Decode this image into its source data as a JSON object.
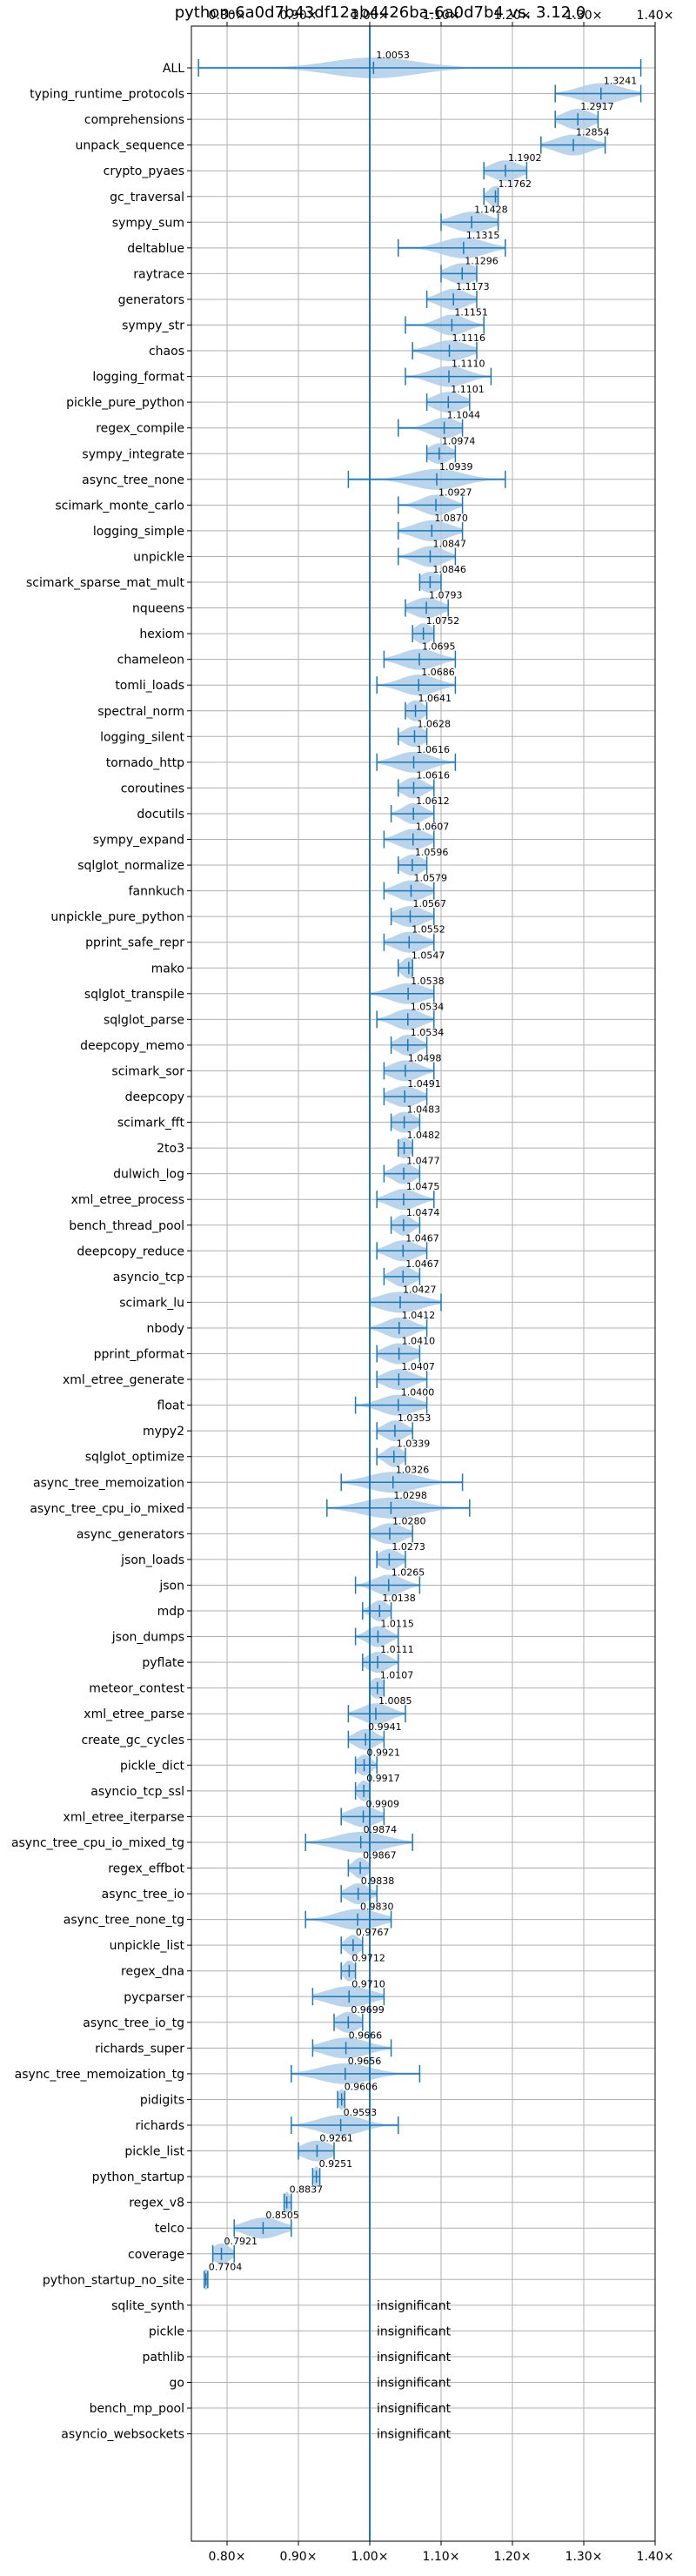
{
  "chart_data": {
    "type": "violin",
    "title": "python-6a0d7b43df12ab4426ba-6a0d7b4 vs. 3.12.0",
    "xlim": [
      0.75,
      1.4
    ],
    "x_ticks": [
      0.8,
      0.9,
      1.0,
      1.1,
      1.2,
      1.3,
      1.4
    ],
    "x_tick_labels": [
      "0.80×",
      "0.90×",
      "1.00×",
      "1.10×",
      "1.20×",
      "1.30×",
      "1.40×"
    ],
    "reference_line": 1.0,
    "grid": true,
    "colors": {
      "line": "#1f77b4",
      "violin": "#aecde8",
      "grid": "#b0b0b0",
      "frame": "#000000"
    },
    "insignificant_text": "insignificant",
    "benchmarks": [
      {
        "name": "ALL",
        "value": 1.0053,
        "label": "1.0053",
        "min": 0.76,
        "max": 1.38,
        "spread": 0.06
      },
      {
        "name": "typing_runtime_protocols",
        "value": 1.3241,
        "label": "1.3241",
        "min": 1.26,
        "max": 1.38,
        "spread": 0.03
      },
      {
        "name": "comprehensions",
        "value": 1.2917,
        "label": "1.2917",
        "min": 1.26,
        "max": 1.32,
        "spread": 0.02
      },
      {
        "name": "unpack_sequence",
        "value": 1.2854,
        "label": "1.2854",
        "min": 1.24,
        "max": 1.33,
        "spread": 0.025
      },
      {
        "name": "crypto_pyaes",
        "value": 1.1902,
        "label": "1.1902",
        "min": 1.16,
        "max": 1.22,
        "spread": 0.02
      },
      {
        "name": "gc_traversal",
        "value": 1.1762,
        "label": "1.1762",
        "min": 1.16,
        "max": 1.18,
        "spread": 0.01
      },
      {
        "name": "sympy_sum",
        "value": 1.1428,
        "label": "1.1428",
        "min": 1.1,
        "max": 1.18,
        "spread": 0.025
      },
      {
        "name": "deltablue",
        "value": 1.1315,
        "label": "1.1315",
        "min": 1.04,
        "max": 1.19,
        "spread": 0.03
      },
      {
        "name": "raytrace",
        "value": 1.1296,
        "label": "1.1296",
        "min": 1.1,
        "max": 1.15,
        "spread": 0.02
      },
      {
        "name": "generators",
        "value": 1.1173,
        "label": "1.1173",
        "min": 1.08,
        "max": 1.15,
        "spread": 0.02
      },
      {
        "name": "sympy_str",
        "value": 1.1151,
        "label": "1.1151",
        "min": 1.05,
        "max": 1.16,
        "spread": 0.02
      },
      {
        "name": "chaos",
        "value": 1.1116,
        "label": "1.1116",
        "min": 1.06,
        "max": 1.15,
        "spread": 0.025
      },
      {
        "name": "logging_format",
        "value": 1.111,
        "label": "1.1110",
        "min": 1.05,
        "max": 1.17,
        "spread": 0.025
      },
      {
        "name": "pickle_pure_python",
        "value": 1.1101,
        "label": "1.1101",
        "min": 1.08,
        "max": 1.14,
        "spread": 0.02
      },
      {
        "name": "regex_compile",
        "value": 1.1044,
        "label": "1.1044",
        "min": 1.04,
        "max": 1.13,
        "spread": 0.02
      },
      {
        "name": "sympy_integrate",
        "value": 1.0974,
        "label": "1.0974",
        "min": 1.08,
        "max": 1.12,
        "spread": 0.015
      },
      {
        "name": "async_tree_none",
        "value": 1.0939,
        "label": "1.0939",
        "min": 0.97,
        "max": 1.19,
        "spread": 0.035
      },
      {
        "name": "scimark_monte_carlo",
        "value": 1.0927,
        "label": "1.0927",
        "min": 1.04,
        "max": 1.13,
        "spread": 0.02
      },
      {
        "name": "logging_simple",
        "value": 1.087,
        "label": "1.0870",
        "min": 1.04,
        "max": 1.13,
        "spread": 0.025
      },
      {
        "name": "unpickle",
        "value": 1.0847,
        "label": "1.0847",
        "min": 1.04,
        "max": 1.12,
        "spread": 0.02
      },
      {
        "name": "scimark_sparse_mat_mult",
        "value": 1.0846,
        "label": "1.0846",
        "min": 1.07,
        "max": 1.1,
        "spread": 0.015
      },
      {
        "name": "nqueens",
        "value": 1.0793,
        "label": "1.0793",
        "min": 1.05,
        "max": 1.11,
        "spread": 0.02
      },
      {
        "name": "hexiom",
        "value": 1.0752,
        "label": "1.0752",
        "min": 1.06,
        "max": 1.09,
        "spread": 0.012
      },
      {
        "name": "chameleon",
        "value": 1.0695,
        "label": "1.0695",
        "min": 1.02,
        "max": 1.12,
        "spread": 0.025
      },
      {
        "name": "tomli_loads",
        "value": 1.0686,
        "label": "1.0686",
        "min": 1.01,
        "max": 1.12,
        "spread": 0.025
      },
      {
        "name": "spectral_norm",
        "value": 1.0641,
        "label": "1.0641",
        "min": 1.05,
        "max": 1.08,
        "spread": 0.012
      },
      {
        "name": "logging_silent",
        "value": 1.0628,
        "label": "1.0628",
        "min": 1.04,
        "max": 1.08,
        "spread": 0.015
      },
      {
        "name": "tornado_http",
        "value": 1.0616,
        "label": "1.0616",
        "min": 1.01,
        "max": 1.12,
        "spread": 0.025
      },
      {
        "name": "coroutines",
        "value": 1.0616,
        "label": "1.0616",
        "min": 1.04,
        "max": 1.09,
        "spread": 0.015
      },
      {
        "name": "docutils",
        "value": 1.0612,
        "label": "1.0612",
        "min": 1.03,
        "max": 1.09,
        "spread": 0.015
      },
      {
        "name": "sympy_expand",
        "value": 1.0607,
        "label": "1.0607",
        "min": 1.02,
        "max": 1.09,
        "spread": 0.02
      },
      {
        "name": "sqlglot_normalize",
        "value": 1.0596,
        "label": "1.0596",
        "min": 1.04,
        "max": 1.08,
        "spread": 0.015
      },
      {
        "name": "fannkuch",
        "value": 1.0579,
        "label": "1.0579",
        "min": 1.02,
        "max": 1.09,
        "spread": 0.02
      },
      {
        "name": "unpickle_pure_python",
        "value": 1.0567,
        "label": "1.0567",
        "min": 1.03,
        "max": 1.09,
        "spread": 0.02
      },
      {
        "name": "pprint_safe_repr",
        "value": 1.0552,
        "label": "1.0552",
        "min": 1.02,
        "max": 1.09,
        "spread": 0.02
      },
      {
        "name": "mako",
        "value": 1.0547,
        "label": "1.0547",
        "min": 1.04,
        "max": 1.06,
        "spread": 0.01
      },
      {
        "name": "sqlglot_transpile",
        "value": 1.0538,
        "label": "1.0538",
        "min": 1.0,
        "max": 1.09,
        "spread": 0.025
      },
      {
        "name": "sqlglot_parse",
        "value": 1.0534,
        "label": "1.0534",
        "min": 1.01,
        "max": 1.09,
        "spread": 0.02
      },
      {
        "name": "deepcopy_memo",
        "value": 1.0534,
        "label": "1.0534",
        "min": 1.03,
        "max": 1.08,
        "spread": 0.015
      },
      {
        "name": "scimark_sor",
        "value": 1.0498,
        "label": "1.0498",
        "min": 1.02,
        "max": 1.09,
        "spread": 0.02
      },
      {
        "name": "deepcopy",
        "value": 1.0491,
        "label": "1.0491",
        "min": 1.02,
        "max": 1.08,
        "spread": 0.02
      },
      {
        "name": "scimark_fft",
        "value": 1.0483,
        "label": "1.0483",
        "min": 1.03,
        "max": 1.07,
        "spread": 0.015
      },
      {
        "name": "2to3",
        "value": 1.0482,
        "label": "1.0482",
        "min": 1.04,
        "max": 1.06,
        "spread": 0.01
      },
      {
        "name": "dulwich_log",
        "value": 1.0477,
        "label": "1.0477",
        "min": 1.02,
        "max": 1.07,
        "spread": 0.015
      },
      {
        "name": "xml_etree_process",
        "value": 1.0475,
        "label": "1.0475",
        "min": 1.01,
        "max": 1.09,
        "spread": 0.02
      },
      {
        "name": "bench_thread_pool",
        "value": 1.0474,
        "label": "1.0474",
        "min": 1.03,
        "max": 1.07,
        "spread": 0.012
      },
      {
        "name": "deepcopy_reduce",
        "value": 1.0467,
        "label": "1.0467",
        "min": 1.01,
        "max": 1.08,
        "spread": 0.02
      },
      {
        "name": "asyncio_tcp",
        "value": 1.0467,
        "label": "1.0467",
        "min": 1.02,
        "max": 1.07,
        "spread": 0.015
      },
      {
        "name": "scimark_lu",
        "value": 1.0427,
        "label": "1.0427",
        "min": 1.0,
        "max": 1.1,
        "spread": 0.03
      },
      {
        "name": "nbody",
        "value": 1.0412,
        "label": "1.0412",
        "min": 1.0,
        "max": 1.08,
        "spread": 0.02
      },
      {
        "name": "pprint_pformat",
        "value": 1.041,
        "label": "1.0410",
        "min": 1.01,
        "max": 1.07,
        "spread": 0.02
      },
      {
        "name": "xml_etree_generate",
        "value": 1.0407,
        "label": "1.0407",
        "min": 1.01,
        "max": 1.08,
        "spread": 0.02
      },
      {
        "name": "float",
        "value": 1.04,
        "label": "1.0400",
        "min": 0.98,
        "max": 1.08,
        "spread": 0.025
      },
      {
        "name": "mypy2",
        "value": 1.0353,
        "label": "1.0353",
        "min": 1.01,
        "max": 1.06,
        "spread": 0.015
      },
      {
        "name": "sqlglot_optimize",
        "value": 1.0339,
        "label": "1.0339",
        "min": 1.01,
        "max": 1.05,
        "spread": 0.012
      },
      {
        "name": "async_tree_memoization",
        "value": 1.0326,
        "label": "1.0326",
        "min": 0.96,
        "max": 1.13,
        "spread": 0.035
      },
      {
        "name": "async_tree_cpu_io_mixed",
        "value": 1.0298,
        "label": "1.0298",
        "min": 0.94,
        "max": 1.14,
        "spread": 0.04
      },
      {
        "name": "async_generators",
        "value": 1.028,
        "label": "1.0280",
        "min": 1.0,
        "max": 1.06,
        "spread": 0.02
      },
      {
        "name": "json_loads",
        "value": 1.0273,
        "label": "1.0273",
        "min": 1.01,
        "max": 1.05,
        "spread": 0.015
      },
      {
        "name": "json",
        "value": 1.0265,
        "label": "1.0265",
        "min": 0.98,
        "max": 1.07,
        "spread": 0.02
      },
      {
        "name": "mdp",
        "value": 1.0138,
        "label": "1.0138",
        "min": 0.99,
        "max": 1.03,
        "spread": 0.012
      },
      {
        "name": "json_dumps",
        "value": 1.0115,
        "label": "1.0115",
        "min": 0.98,
        "max": 1.04,
        "spread": 0.015
      },
      {
        "name": "pyflate",
        "value": 1.0111,
        "label": "1.0111",
        "min": 0.99,
        "max": 1.04,
        "spread": 0.015
      },
      {
        "name": "meteor_contest",
        "value": 1.0107,
        "label": "1.0107",
        "min": 1.0,
        "max": 1.02,
        "spread": 0.01
      },
      {
        "name": "xml_etree_parse",
        "value": 1.0085,
        "label": "1.0085",
        "min": 0.97,
        "max": 1.05,
        "spread": 0.02
      },
      {
        "name": "create_gc_cycles",
        "value": 0.9941,
        "label": "0.9941",
        "min": 0.97,
        "max": 1.02,
        "spread": 0.015
      },
      {
        "name": "pickle_dict",
        "value": 0.9921,
        "label": "0.9921",
        "min": 0.98,
        "max": 1.01,
        "spread": 0.01
      },
      {
        "name": "asyncio_tcp_ssl",
        "value": 0.9917,
        "label": "0.9917",
        "min": 0.98,
        "max": 1.0,
        "spread": 0.008
      },
      {
        "name": "xml_etree_iterparse",
        "value": 0.9909,
        "label": "0.9909",
        "min": 0.96,
        "max": 1.02,
        "spread": 0.02
      },
      {
        "name": "async_tree_cpu_io_mixed_tg",
        "value": 0.9874,
        "label": "0.9874",
        "min": 0.91,
        "max": 1.06,
        "spread": 0.035
      },
      {
        "name": "regex_effbot",
        "value": 0.9867,
        "label": "0.9867",
        "min": 0.97,
        "max": 1.0,
        "spread": 0.01
      },
      {
        "name": "async_tree_io",
        "value": 0.9838,
        "label": "0.9838",
        "min": 0.96,
        "max": 1.01,
        "spread": 0.015
      },
      {
        "name": "async_tree_none_tg",
        "value": 0.983,
        "label": "0.9830",
        "min": 0.91,
        "max": 1.03,
        "spread": 0.03
      },
      {
        "name": "unpickle_list",
        "value": 0.9767,
        "label": "0.9767",
        "min": 0.96,
        "max": 0.99,
        "spread": 0.01
      },
      {
        "name": "regex_dna",
        "value": 0.9712,
        "label": "0.9712",
        "min": 0.96,
        "max": 0.98,
        "spread": 0.008
      },
      {
        "name": "pycparser",
        "value": 0.971,
        "label": "0.9710",
        "min": 0.92,
        "max": 1.02,
        "spread": 0.03
      },
      {
        "name": "async_tree_io_tg",
        "value": 0.9699,
        "label": "0.9699",
        "min": 0.95,
        "max": 0.99,
        "spread": 0.015
      },
      {
        "name": "richards_super",
        "value": 0.9666,
        "label": "0.9666",
        "min": 0.92,
        "max": 1.03,
        "spread": 0.03
      },
      {
        "name": "async_tree_memoization_tg",
        "value": 0.9656,
        "label": "0.9656",
        "min": 0.89,
        "max": 1.07,
        "spread": 0.035
      },
      {
        "name": "pidigits",
        "value": 0.9606,
        "label": "0.9606",
        "min": 0.955,
        "max": 0.965,
        "spread": 0.005
      },
      {
        "name": "richards",
        "value": 0.9593,
        "label": "0.9593",
        "min": 0.89,
        "max": 1.04,
        "spread": 0.03
      },
      {
        "name": "pickle_list",
        "value": 0.9261,
        "label": "0.9261",
        "min": 0.9,
        "max": 0.95,
        "spread": 0.02
      },
      {
        "name": "python_startup",
        "value": 0.9251,
        "label": "0.9251",
        "min": 0.92,
        "max": 0.93,
        "spread": 0.004
      },
      {
        "name": "regex_v8",
        "value": 0.8837,
        "label": "0.8837",
        "min": 0.88,
        "max": 0.89,
        "spread": 0.005
      },
      {
        "name": "telco",
        "value": 0.8505,
        "label": "0.8505",
        "min": 0.81,
        "max": 0.89,
        "spread": 0.025
      },
      {
        "name": "coverage",
        "value": 0.7921,
        "label": "0.7921",
        "min": 0.78,
        "max": 0.81,
        "spread": 0.012
      },
      {
        "name": "python_startup_no_site",
        "value": 0.7704,
        "label": "0.7704",
        "min": 0.768,
        "max": 0.773,
        "spread": 0.004
      },
      {
        "name": "sqlite_synth",
        "value": null,
        "label": "insignificant"
      },
      {
        "name": "pickle",
        "value": null,
        "label": "insignificant"
      },
      {
        "name": "pathlib",
        "value": null,
        "label": "insignificant"
      },
      {
        "name": "go",
        "value": null,
        "label": "insignificant"
      },
      {
        "name": "bench_mp_pool",
        "value": null,
        "label": "insignificant"
      },
      {
        "name": "asyncio_websockets",
        "value": null,
        "label": "insignificant"
      }
    ]
  }
}
